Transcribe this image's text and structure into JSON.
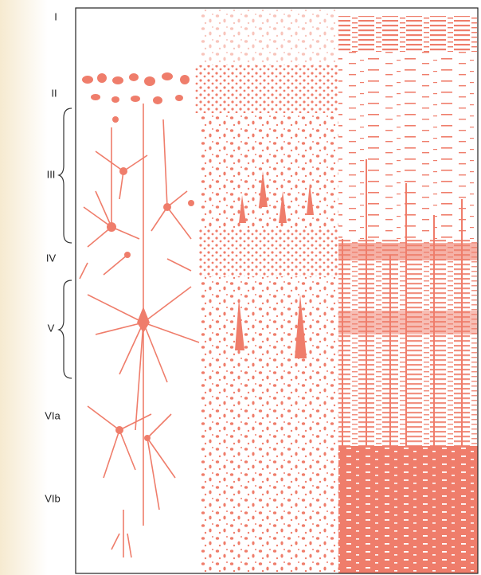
{
  "layers": [
    "I",
    "II",
    "III",
    "IV",
    "V",
    "VIa",
    "VIb"
  ]
}
